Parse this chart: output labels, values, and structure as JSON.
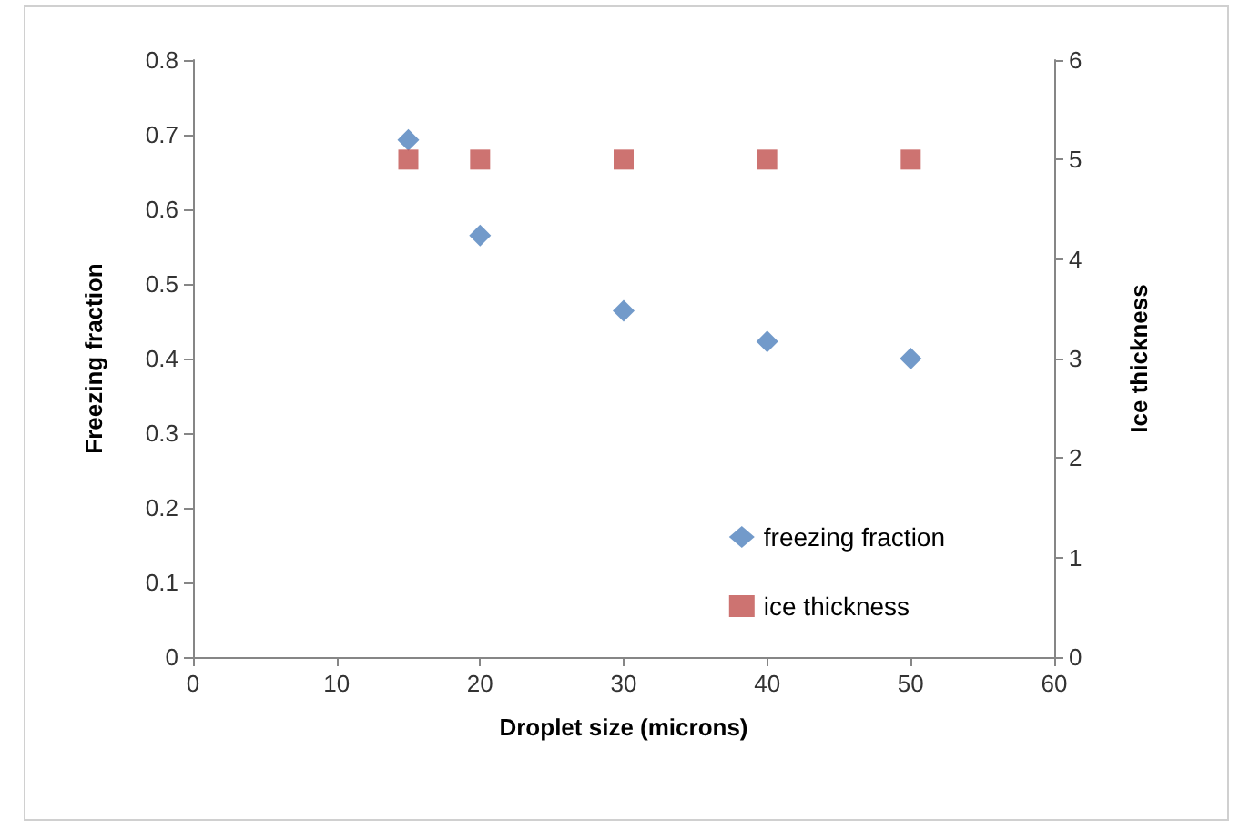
{
  "chart_data": {
    "type": "scatter",
    "xlabel": "Droplet size (microns)",
    "ylabel": "Freezing fraction",
    "y2label": "Ice thickness",
    "x": [
      15,
      20,
      30,
      40,
      50
    ],
    "xlim": [
      0,
      60
    ],
    "xticks": [
      0,
      10,
      20,
      30,
      40,
      50,
      60
    ],
    "ylim": [
      0,
      0.8
    ],
    "yticks": [
      0,
      0.1,
      0.2,
      0.3,
      0.4,
      0.5,
      0.6,
      0.7,
      0.8
    ],
    "y2lim": [
      0,
      6
    ],
    "y2ticks": [
      0,
      1,
      2,
      3,
      4,
      5,
      6
    ],
    "grid": false,
    "legend": "bottom right",
    "series": [
      {
        "name": "freezing fraction",
        "color": "#4f81bd",
        "marker": "diamond",
        "values": [
          0.693,
          0.565,
          0.464,
          0.423,
          0.4
        ]
      },
      {
        "name": "ice thickness",
        "color": "#c0504d",
        "marker": "square",
        "axis": "y2",
        "values": [
          5,
          5,
          5,
          5,
          5
        ]
      }
    ]
  }
}
